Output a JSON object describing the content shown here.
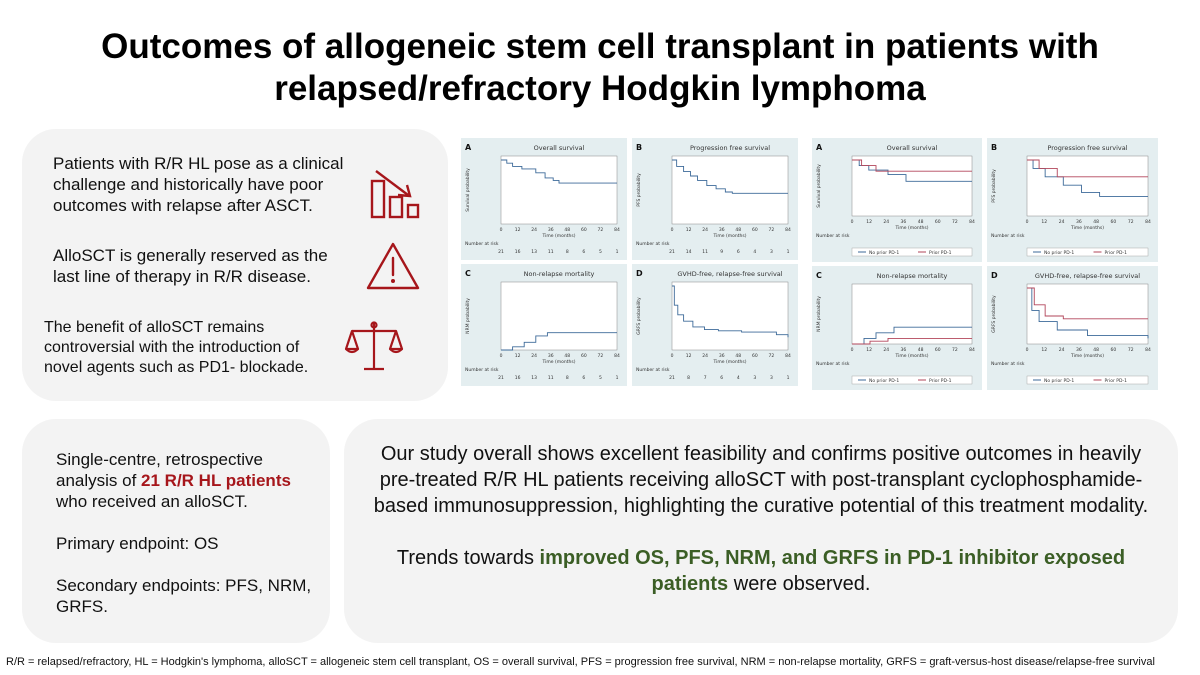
{
  "title": {
    "line1": "Outcomes  of allogeneic stem cell transplant in patients with",
    "line2": "relapsed/refractory Hodgkin lymphoma"
  },
  "intro": {
    "point1": [
      "Patients with R/R HL pose as a clinical",
      "challenge and historically have poor",
      "outcomes with relapse after ASCT."
    ],
    "point2": [
      "AlloSCT is generally reserved as the",
      "last line of therapy in R/R disease."
    ],
    "point3": [
      "The benefit of alloSCT remains",
      "controversial with the introduction of",
      "novel agents such as PD1- blockade."
    ],
    "icons": [
      "declining-bar-chart-icon",
      "warning-triangle-icon",
      "balance-scale-icon"
    ],
    "icon_color": "#a6161b"
  },
  "methods": {
    "p1_before": "Single-centre, retrospective analysis of ",
    "p1_highlight": "21 R/R HL patients",
    "p1_after": " who received an alloSCT.",
    "p2": "Primary endpoint: OS",
    "p3": "Secondary endpoints: PFS, NRM, GRFS."
  },
  "conclusion": {
    "p1": "Our study overall shows excellent feasibility and confirms positive outcomes in heavily pre-treated R/R HL patients receiving alloSCT with post-transplant cyclophosphamide-based immunosuppression, highlighting the curative potential of this treatment modality.",
    "p2_before": "Trends towards ",
    "p2_highlight": "improved OS, PFS, NRM, and GRFS in PD-1 inhibitor exposed patients",
    "p2_after": " were observed.",
    "highlight_color": "#3b5e25"
  },
  "figures": {
    "x_ticks": [
      "0",
      "12",
      "24",
      "36",
      "48",
      "60",
      "72",
      "84"
    ],
    "x_label": "Time (months)",
    "risk_label": "Number at risk",
    "left_group": [
      {
        "letter": "A",
        "title": "Overall survival",
        "ylabel": "Survival probability",
        "risk": "21 16 13 11 8 6 5 1"
      },
      {
        "letter": "B",
        "title": "Progression free survival",
        "ylabel": "PFS probability",
        "risk": "21 14 11 9 6 4 3 1"
      },
      {
        "letter": "C",
        "title": "Non-relapse mortality",
        "ylabel": "NRM probability",
        "risk": "21 16 13 11 8 6 5 1"
      },
      {
        "letter": "D",
        "title": "GVHD-free, relapse-free survival",
        "ylabel": "GRFS probability",
        "risk": "21 8 7 6 4 3 3 1"
      }
    ],
    "right_group": [
      {
        "letter": "A",
        "title": "Overall survival",
        "ylabel": "Survival probability"
      },
      {
        "letter": "B",
        "title": "Progression free survival",
        "ylabel": "PFS probability"
      },
      {
        "letter": "C",
        "title": "Non-relapse mortality",
        "ylabel": "NRM probability"
      },
      {
        "letter": "D",
        "title": "GVHD-free, relapse-free survival",
        "ylabel": "GRFS probability"
      }
    ],
    "legend": [
      "No prior PD-1",
      "Prior PD-1"
    ],
    "series_colors": [
      "#3d6a99",
      "#b2455a"
    ]
  },
  "footnote": "R/R = relapsed/refractory, HL = Hodgkin's lymphoma, alloSCT = allogeneic stem cell transplant, OS = overall survival, PFS = progression free survival, NRM = non-relapse mortality, GRFS = graft-versus-host disease/relapse-free survival"
}
